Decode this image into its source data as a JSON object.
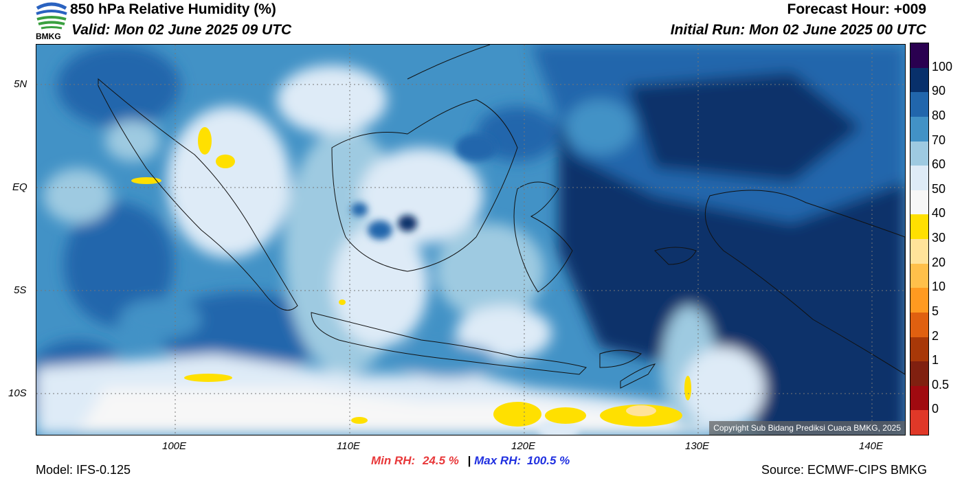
{
  "header": {
    "title": "850 hPa Relative Humidity (%)",
    "valid": "Valid: Mon 02 June 2025 09 UTC",
    "forecast_hour": "Forecast Hour: +009",
    "initial_run": "Initial Run: Mon 02 June 2025 00 UTC",
    "logo_text": "BMKG"
  },
  "map": {
    "lat_labels": [
      "5N",
      "EQ",
      "5S",
      "10S"
    ],
    "lon_labels": [
      "100E",
      "110E",
      "120E",
      "130E",
      "140E"
    ],
    "copyright": "Copyright Sub Bidang Prediksi Cuaca BMKG, 2025",
    "lon_range": [
      92,
      142
    ],
    "lat_range": [
      -12,
      7
    ]
  },
  "colorbar": {
    "labels": [
      "100",
      "90",
      "80",
      "70",
      "60",
      "50",
      "40",
      "30",
      "20",
      "10",
      "5",
      "2",
      "1",
      "0.5",
      "0"
    ],
    "colors": [
      "#2a0050",
      "#08306b",
      "#2166ac",
      "#4292c6",
      "#9ecae1",
      "#deebf7",
      "#f7f7f7",
      "#ffe000",
      "#ffe39a",
      "#ffc04a",
      "#ff9a20",
      "#e06010",
      "#a83808",
      "#802010",
      "#a00a10",
      "#e03828"
    ]
  },
  "footer": {
    "model": "Model: IFS-0.125",
    "min_rh_label": "Min RH:",
    "min_rh_value": "24.5 %",
    "separator": "|",
    "max_rh_label": "Max RH:",
    "max_rh_value": "100.5 %",
    "source": "Source: ECMWF-CIPS BMKG",
    "min_color": "#e8383a",
    "max_color": "#2030e0"
  }
}
